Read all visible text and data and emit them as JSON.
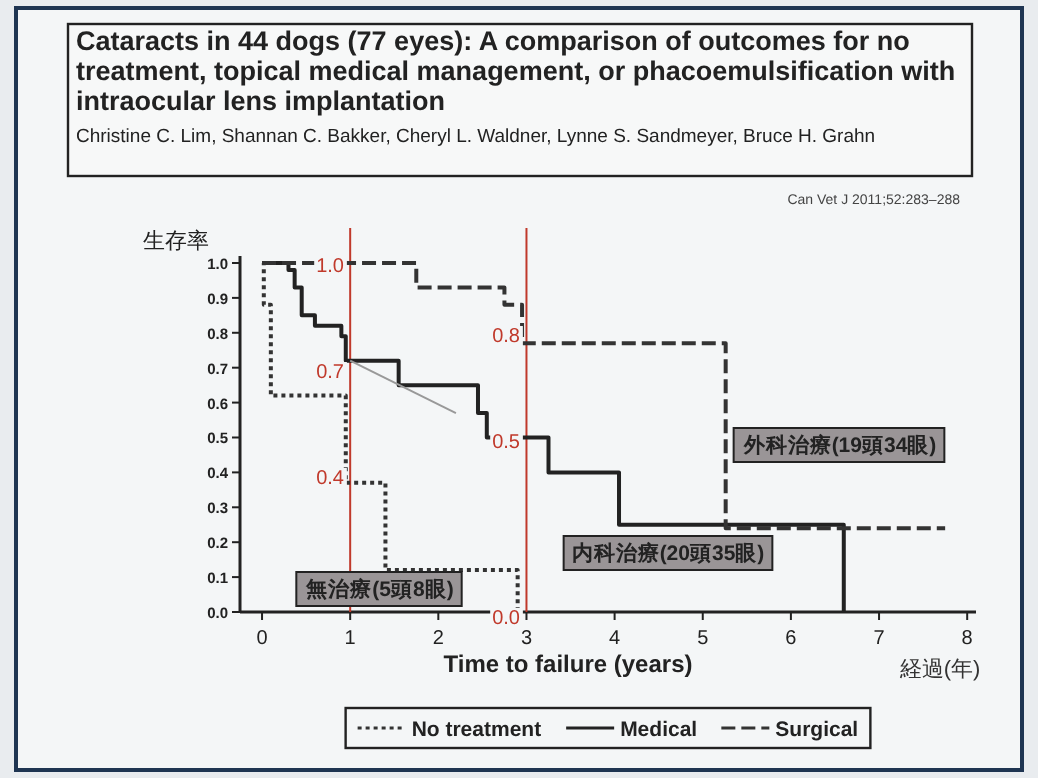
{
  "chart_data": {
    "type": "step",
    "title": "Cataracts in 44 dogs (77 eyes): A comparison of outcomes for no treatment, topical medical management, or phacoemulsification with intraocular lens implantation",
    "subtitle": "Christine C. Lim, Shannan C. Bakker, Cheryl L. Waldner, Lynne S. Sandmeyer, Bruce H. Grahn",
    "xlabel": "Time to failure (years)",
    "ylabel": "生存率",
    "xlim": [
      -0.25,
      8.1
    ],
    "xticks": [
      0,
      1,
      2,
      3,
      4,
      5,
      6,
      7,
      8
    ],
    "ylim": [
      0,
      1.02
    ],
    "yticks": [
      {
        "value": 0,
        "label": "0.0"
      },
      {
        "value": 0.1,
        "label": "0.1"
      },
      {
        "value": 0.2,
        "label": "0.2"
      },
      {
        "value": 0.3,
        "label": "0.3"
      },
      {
        "value": 0.4,
        "label": "0.4"
      },
      {
        "value": 0.5,
        "label": "0.5"
      },
      {
        "value": 0.6,
        "label": "0.6"
      },
      {
        "value": 0.7,
        "label": "0.7"
      },
      {
        "value": 0.8,
        "label": "0.8"
      },
      {
        "value": 0.9,
        "label": "0.9"
      },
      {
        "value": 1,
        "label": "1.0"
      }
    ],
    "grid": false,
    "legend": "bottom",
    "series": [
      {
        "name": "No treatment",
        "color": "#333333",
        "line_style": "dotted",
        "x": [
          0,
          0.02,
          0.1,
          0.95,
          1.4,
          2.9
        ],
        "values": [
          1.0,
          0.88,
          0.62,
          0.37,
          0.12,
          0.0
        ]
      },
      {
        "name": "Medical",
        "color": "#222222",
        "line_style": "solid",
        "x": [
          0,
          0.3,
          0.37,
          0.45,
          0.6,
          0.9,
          0.95,
          1.55,
          2.45,
          2.55,
          3.25,
          4.05,
          6.6
        ],
        "values": [
          1.0,
          0.98,
          0.93,
          0.85,
          0.82,
          0.79,
          0.72,
          0.65,
          0.57,
          0.5,
          0.4,
          0.25,
          0.0
        ]
      },
      {
        "name": "Surgical",
        "color": "#333333",
        "line_style": "dashed",
        "x": [
          0,
          1.75,
          2.75,
          2.95,
          5.26,
          7.75
        ],
        "values": [
          1.0,
          0.93,
          0.88,
          0.77,
          0.24,
          0.24
        ]
      },
      {
        "type": "line",
        "color": "#999999",
        "line_style": "solid",
        "x": [
          1,
          2.2
        ],
        "values": [
          0.72,
          0.57
        ]
      }
    ],
    "ref_lines": [
      {
        "axis": "x",
        "value": 1,
        "color": "#c0392b"
      },
      {
        "axis": "x",
        "value": 3,
        "color": "#c0392b"
      }
    ],
    "annotations": [
      "Can Vet J 2011;52:283–288",
      "経過(年)",
      "1.0",
      "0.7",
      "0.4",
      "0.8",
      "0.5",
      "0.0",
      "無治療(5頭8眼)",
      "内科治療(20頭35眼)",
      "外科治療(19頭34眼)"
    ]
  }
}
